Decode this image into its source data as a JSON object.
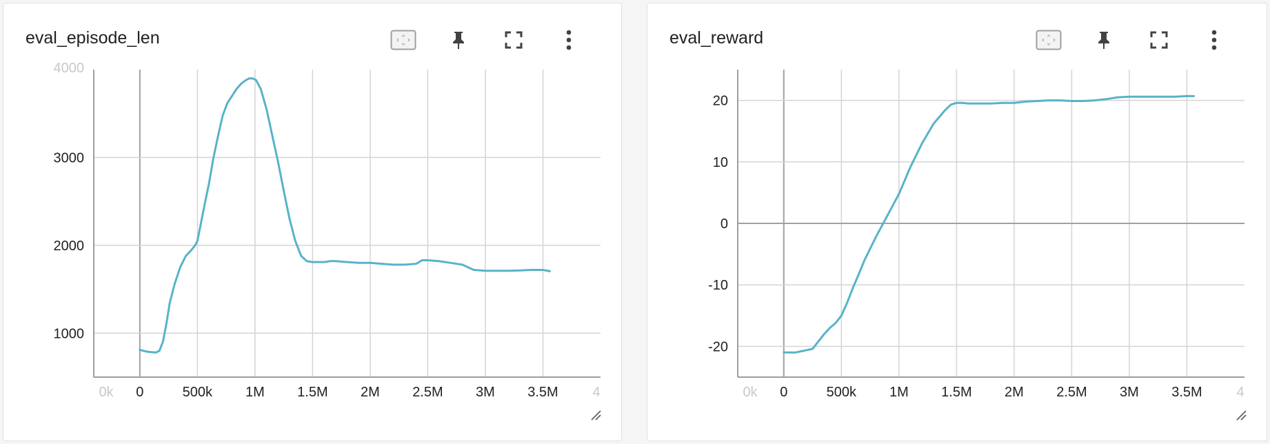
{
  "colors": {
    "line": "#56b3c8",
    "grid": "#d4d4d4",
    "zero_axis": "#a0a0a0",
    "axis": "#9e9e9e",
    "tick_text": "#212121",
    "faded_text": "#c8c8c8"
  },
  "toolbar_icons": [
    "fit-domain-icon",
    "pin-icon",
    "fullscreen-icon",
    "more-vert-icon"
  ],
  "chart_data": [
    {
      "type": "line",
      "title": "eval_episode_len",
      "xlabel": "",
      "ylabel": "",
      "xlim": [
        -400000,
        4000000
      ],
      "ylim": [
        500,
        4000
      ],
      "x_ticks": [
        "0",
        "500k",
        "1M",
        "1.5M",
        "2M",
        "2.5M",
        "3M",
        "3.5M"
      ],
      "x_tick_values": [
        0,
        500000,
        1000000,
        1500000,
        2000000,
        2500000,
        3000000,
        3500000
      ],
      "x_edge_labels": [
        "0k",
        "4"
      ],
      "y_ticks": [
        "1000",
        "2000",
        "3000"
      ],
      "y_tick_values": [
        1000,
        2000,
        3000
      ],
      "y_top_label": "4000",
      "grid": true,
      "series": [
        {
          "x": [
            0,
            30000,
            60000,
            100000,
            140000,
            170000,
            200000,
            230000,
            260000,
            300000,
            350000,
            400000,
            450000,
            480000,
            500000,
            530000,
            560000,
            600000,
            640000,
            680000,
            720000,
            760000,
            800000,
            840000,
            880000,
            920000,
            950000,
            980000,
            1010000,
            1050000,
            1100000,
            1150000,
            1200000,
            1250000,
            1300000,
            1350000,
            1400000,
            1450000,
            1500000,
            1550000,
            1600000,
            1650000,
            1700000,
            1800000,
            1900000,
            2000000,
            2100000,
            2200000,
            2300000,
            2400000,
            2450000,
            2500000,
            2600000,
            2700000,
            2800000,
            2900000,
            3000000,
            3100000,
            3200000,
            3300000,
            3400000,
            3500000,
            3560000
          ],
          "y": [
            810,
            800,
            790,
            785,
            780,
            800,
            900,
            1100,
            1350,
            1550,
            1750,
            1880,
            1950,
            2000,
            2050,
            2250,
            2450,
            2700,
            3000,
            3250,
            3480,
            3620,
            3700,
            3780,
            3840,
            3880,
            3900,
            3900,
            3880,
            3780,
            3550,
            3250,
            2950,
            2620,
            2300,
            2050,
            1880,
            1820,
            1810,
            1810,
            1810,
            1820,
            1820,
            1810,
            1800,
            1800,
            1790,
            1780,
            1780,
            1790,
            1830,
            1830,
            1820,
            1800,
            1780,
            1720,
            1710,
            1710,
            1710,
            1715,
            1720,
            1720,
            1705
          ]
        }
      ]
    },
    {
      "type": "line",
      "title": "eval_reward",
      "xlabel": "",
      "ylabel": "",
      "xlim": [
        -400000,
        4000000
      ],
      "ylim": [
        -25,
        25
      ],
      "x_ticks": [
        "0",
        "500k",
        "1M",
        "1.5M",
        "2M",
        "2.5M",
        "3M",
        "3.5M"
      ],
      "x_tick_values": [
        0,
        500000,
        1000000,
        1500000,
        2000000,
        2500000,
        3000000,
        3500000
      ],
      "x_edge_labels": [
        "0k",
        "4"
      ],
      "y_ticks": [
        "-20",
        "-10",
        "0",
        "10",
        "20"
      ],
      "y_tick_values": [
        -20,
        -10,
        0,
        10,
        20
      ],
      "grid": true,
      "series": [
        {
          "x": [
            0,
            50000,
            100000,
            150000,
            200000,
            250000,
            300000,
            350000,
            400000,
            450000,
            500000,
            550000,
            600000,
            650000,
            700000,
            800000,
            900000,
            1000000,
            1100000,
            1200000,
            1300000,
            1400000,
            1450000,
            1500000,
            1550000,
            1600000,
            1700000,
            1800000,
            1900000,
            2000000,
            2100000,
            2200000,
            2300000,
            2400000,
            2500000,
            2600000,
            2700000,
            2800000,
            2900000,
            3000000,
            3100000,
            3200000,
            3300000,
            3400000,
            3500000,
            3560000
          ],
          "y": [
            -21,
            -21,
            -21,
            -20.8,
            -20.6,
            -20.4,
            -19.2,
            -18,
            -17,
            -16.2,
            -15,
            -12.9,
            -10.5,
            -8.3,
            -6,
            -2.2,
            1.3,
            4.8,
            9.2,
            13,
            16.2,
            18.4,
            19.3,
            19.6,
            19.6,
            19.5,
            19.5,
            19.5,
            19.6,
            19.6,
            19.8,
            19.9,
            20,
            20,
            19.9,
            19.9,
            20,
            20.2,
            20.5,
            20.6,
            20.6,
            20.6,
            20.6,
            20.6,
            20.7,
            20.7
          ]
        }
      ]
    }
  ]
}
